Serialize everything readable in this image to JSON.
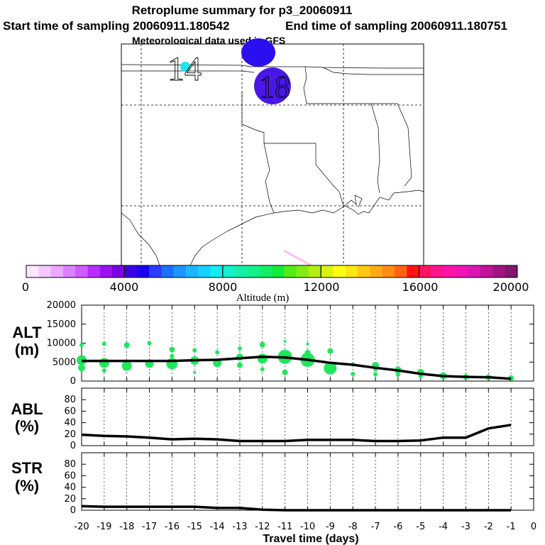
{
  "header": {
    "title": "Retroplume summary for p3_20060911",
    "start_label": "Start time of sampling 20060911.180542",
    "end_label": "End time of sampling 20060911.180751",
    "met_label": "Meteorological data used is GFS"
  },
  "map": {
    "markers": [
      {
        "label": "14",
        "color": "#1ee6f0"
      },
      {
        "label": "",
        "color": "#2a10ee"
      },
      {
        "label": "18",
        "color": "#4a18e6"
      }
    ]
  },
  "colorbar": {
    "colors": [
      "#ffe6ff",
      "#f5c8ff",
      "#eaa8ff",
      "#dd82ff",
      "#cf5cff",
      "#b92cff",
      "#9b10f0",
      "#7a00e6",
      "#3c00e6",
      "#1800ee",
      "#2a3cff",
      "#1e6eff",
      "#1e96ff",
      "#1eb4ff",
      "#14d2ff",
      "#14ecf0",
      "#14f0c8",
      "#14f0a8",
      "#14f08c",
      "#14ee64",
      "#14ea3c",
      "#50ec14",
      "#82ec14",
      "#b4ee14",
      "#dcf014",
      "#ffff14",
      "#ffe614",
      "#ffc814",
      "#ffaa14",
      "#ff8c14",
      "#ff6414",
      "#ff1414",
      "#ff1464",
      "#ff148c",
      "#ff14a8",
      "#f014b4",
      "#dc14b4",
      "#c01496",
      "#a01482",
      "#80146e"
    ],
    "tick_labels": [
      "0",
      "4000",
      "8000",
      "12000",
      "16000",
      "20000"
    ],
    "axis_label": "Altitude (m)"
  },
  "panels": {
    "alt": {
      "label": "ALT",
      "unit": "(m)"
    },
    "abl": {
      "label": "ABL",
      "unit": "(%)"
    },
    "str": {
      "label": "STR",
      "unit": "(%)"
    }
  },
  "x_axis_label": "Travel time (days)",
  "chart_data": [
    {
      "type": "line",
      "title": "ALT (m)",
      "xlabel": "Travel time (days)",
      "ylabel": "ALT (m)",
      "xlim": [
        -20,
        0
      ],
      "ylim": [
        0,
        20000
      ],
      "x_ticks": [
        -20,
        -19,
        -18,
        -17,
        -16,
        -15,
        -14,
        -13,
        -12,
        -11,
        -10,
        -9,
        -8,
        -7,
        -6,
        -5,
        -4,
        -3,
        -2,
        -1,
        0
      ],
      "y_ticks": [
        0,
        5000,
        10000,
        15000,
        20000
      ],
      "x": [
        -20,
        -19,
        -18,
        -17,
        -16,
        -15,
        -14,
        -13,
        -12,
        -11,
        -10,
        -9,
        -8,
        -7,
        -6,
        -5,
        -4,
        -3,
        -2,
        -1
      ],
      "values": [
        5300,
        5300,
        5300,
        5300,
        5300,
        5500,
        5600,
        6000,
        6400,
        6200,
        5600,
        4800,
        4300,
        3500,
        2800,
        1900,
        1300,
        1100,
        1000,
        600
      ],
      "scatter_points": [
        {
          "x": -20,
          "y": 9500,
          "r": 3
        },
        {
          "x": -20,
          "y": 5500,
          "r": 7
        },
        {
          "x": -20,
          "y": 3500,
          "r": 5
        },
        {
          "x": -19,
          "y": 9800,
          "r": 3
        },
        {
          "x": -19,
          "y": 4800,
          "r": 7
        },
        {
          "x": -19,
          "y": 2800,
          "r": 3
        },
        {
          "x": -18,
          "y": 9500,
          "r": 4
        },
        {
          "x": -18,
          "y": 4000,
          "r": 7
        },
        {
          "x": -17,
          "y": 10000,
          "r": 3
        },
        {
          "x": -17,
          "y": 4600,
          "r": 6
        },
        {
          "x": -16,
          "y": 8300,
          "r": 4
        },
        {
          "x": -16,
          "y": 6600,
          "r": 3
        },
        {
          "x": -16,
          "y": 4600,
          "r": 8
        },
        {
          "x": -15,
          "y": 8100,
          "r": 3
        },
        {
          "x": -15,
          "y": 5400,
          "r": 6
        },
        {
          "x": -15,
          "y": 2300,
          "r": 2
        },
        {
          "x": -14,
          "y": 7600,
          "r": 3
        },
        {
          "x": -14,
          "y": 4800,
          "r": 6
        },
        {
          "x": -13,
          "y": 8600,
          "r": 3
        },
        {
          "x": -13,
          "y": 6300,
          "r": 5
        },
        {
          "x": -13,
          "y": 4200,
          "r": 4
        },
        {
          "x": -12,
          "y": 9600,
          "r": 4
        },
        {
          "x": -12,
          "y": 5900,
          "r": 7
        },
        {
          "x": -12,
          "y": 3100,
          "r": 3
        },
        {
          "x": -11,
          "y": 10500,
          "r": 2
        },
        {
          "x": -11,
          "y": 6400,
          "r": 10
        },
        {
          "x": -11,
          "y": 2300,
          "r": 4
        },
        {
          "x": -10,
          "y": 9800,
          "r": 2
        },
        {
          "x": -10,
          "y": 7500,
          "r": 4
        },
        {
          "x": -10,
          "y": 5600,
          "r": 10
        },
        {
          "x": -9,
          "y": 7900,
          "r": 4
        },
        {
          "x": -9,
          "y": 3400,
          "r": 9
        },
        {
          "x": -8,
          "y": 4400,
          "r": 3
        },
        {
          "x": -8,
          "y": 1900,
          "r": 3
        },
        {
          "x": -7,
          "y": 4100,
          "r": 5
        },
        {
          "x": -7,
          "y": 3100,
          "r": 3
        },
        {
          "x": -7,
          "y": 1800,
          "r": 3
        },
        {
          "x": -6,
          "y": 2900,
          "r": 5
        },
        {
          "x": -6,
          "y": 1700,
          "r": 3
        },
        {
          "x": -5,
          "y": 2300,
          "r": 5
        },
        {
          "x": -5,
          "y": 1300,
          "r": 3
        },
        {
          "x": -4,
          "y": 1400,
          "r": 5
        },
        {
          "x": -3,
          "y": 1100,
          "r": 4
        },
        {
          "x": -2,
          "y": 1000,
          "r": 4
        },
        {
          "x": -1,
          "y": 800,
          "r": 4
        }
      ]
    },
    {
      "type": "line",
      "title": "ABL (%)",
      "xlabel": "Travel time (days)",
      "ylabel": "ABL (%)",
      "xlim": [
        -20,
        0
      ],
      "ylim": [
        0,
        100
      ],
      "y_ticks": [
        0,
        20,
        40,
        60,
        80
      ],
      "x": [
        -20,
        -19,
        -18,
        -17,
        -16,
        -15,
        -14,
        -13,
        -12,
        -11,
        -10,
        -9,
        -8,
        -7,
        -6,
        -5,
        -4,
        -3,
        -2,
        -1
      ],
      "values": [
        19,
        17,
        16,
        14,
        11,
        12,
        11,
        8,
        8,
        8,
        10,
        10,
        10,
        8,
        8,
        9,
        14,
        14,
        30,
        36
      ]
    },
    {
      "type": "line",
      "title": "STR (%)",
      "xlabel": "Travel time (days)",
      "ylabel": "STR (%)",
      "xlim": [
        -20,
        0
      ],
      "ylim": [
        0,
        100
      ],
      "y_ticks": [
        0,
        20,
        40,
        60,
        80
      ],
      "x": [
        -20,
        -19,
        -18,
        -17,
        -16,
        -15,
        -14,
        -13,
        -12,
        -11,
        -10,
        -9,
        -8,
        -7,
        -6,
        -5,
        -4,
        -3,
        -2,
        -1
      ],
      "values": [
        7,
        6,
        6,
        6,
        6,
        6,
        4,
        4,
        1,
        0,
        0,
        0,
        0,
        0,
        0,
        0,
        0,
        0,
        0,
        0
      ]
    }
  ]
}
